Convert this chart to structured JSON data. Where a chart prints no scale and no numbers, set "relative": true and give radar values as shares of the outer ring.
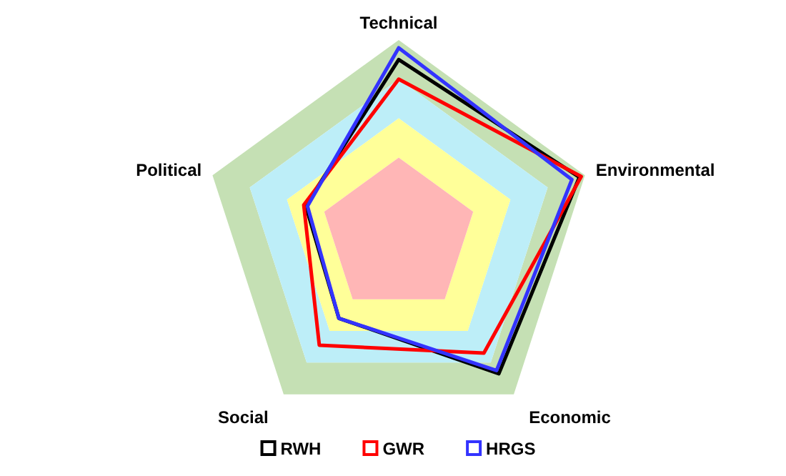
{
  "chart_data": {
    "type": "radar",
    "relative": true,
    "categories": [
      "Technical",
      "Environmental",
      "Economic",
      "Social",
      "Political"
    ],
    "series": [
      {
        "name": "RWH",
        "color": "#000000",
        "values": [
          0.9,
          0.97,
          0.87,
          0.52,
          0.5
        ]
      },
      {
        "name": "GWR",
        "color": "#ff0000",
        "values": [
          0.8,
          0.98,
          0.74,
          0.69,
          0.51
        ]
      },
      {
        "name": "HRGS",
        "color": "#3333ff",
        "values": [
          0.96,
          0.93,
          0.85,
          0.52,
          0.49
        ]
      }
    ],
    "legend": "bottom",
    "marker": "none",
    "line_style": "solid"
  }
}
